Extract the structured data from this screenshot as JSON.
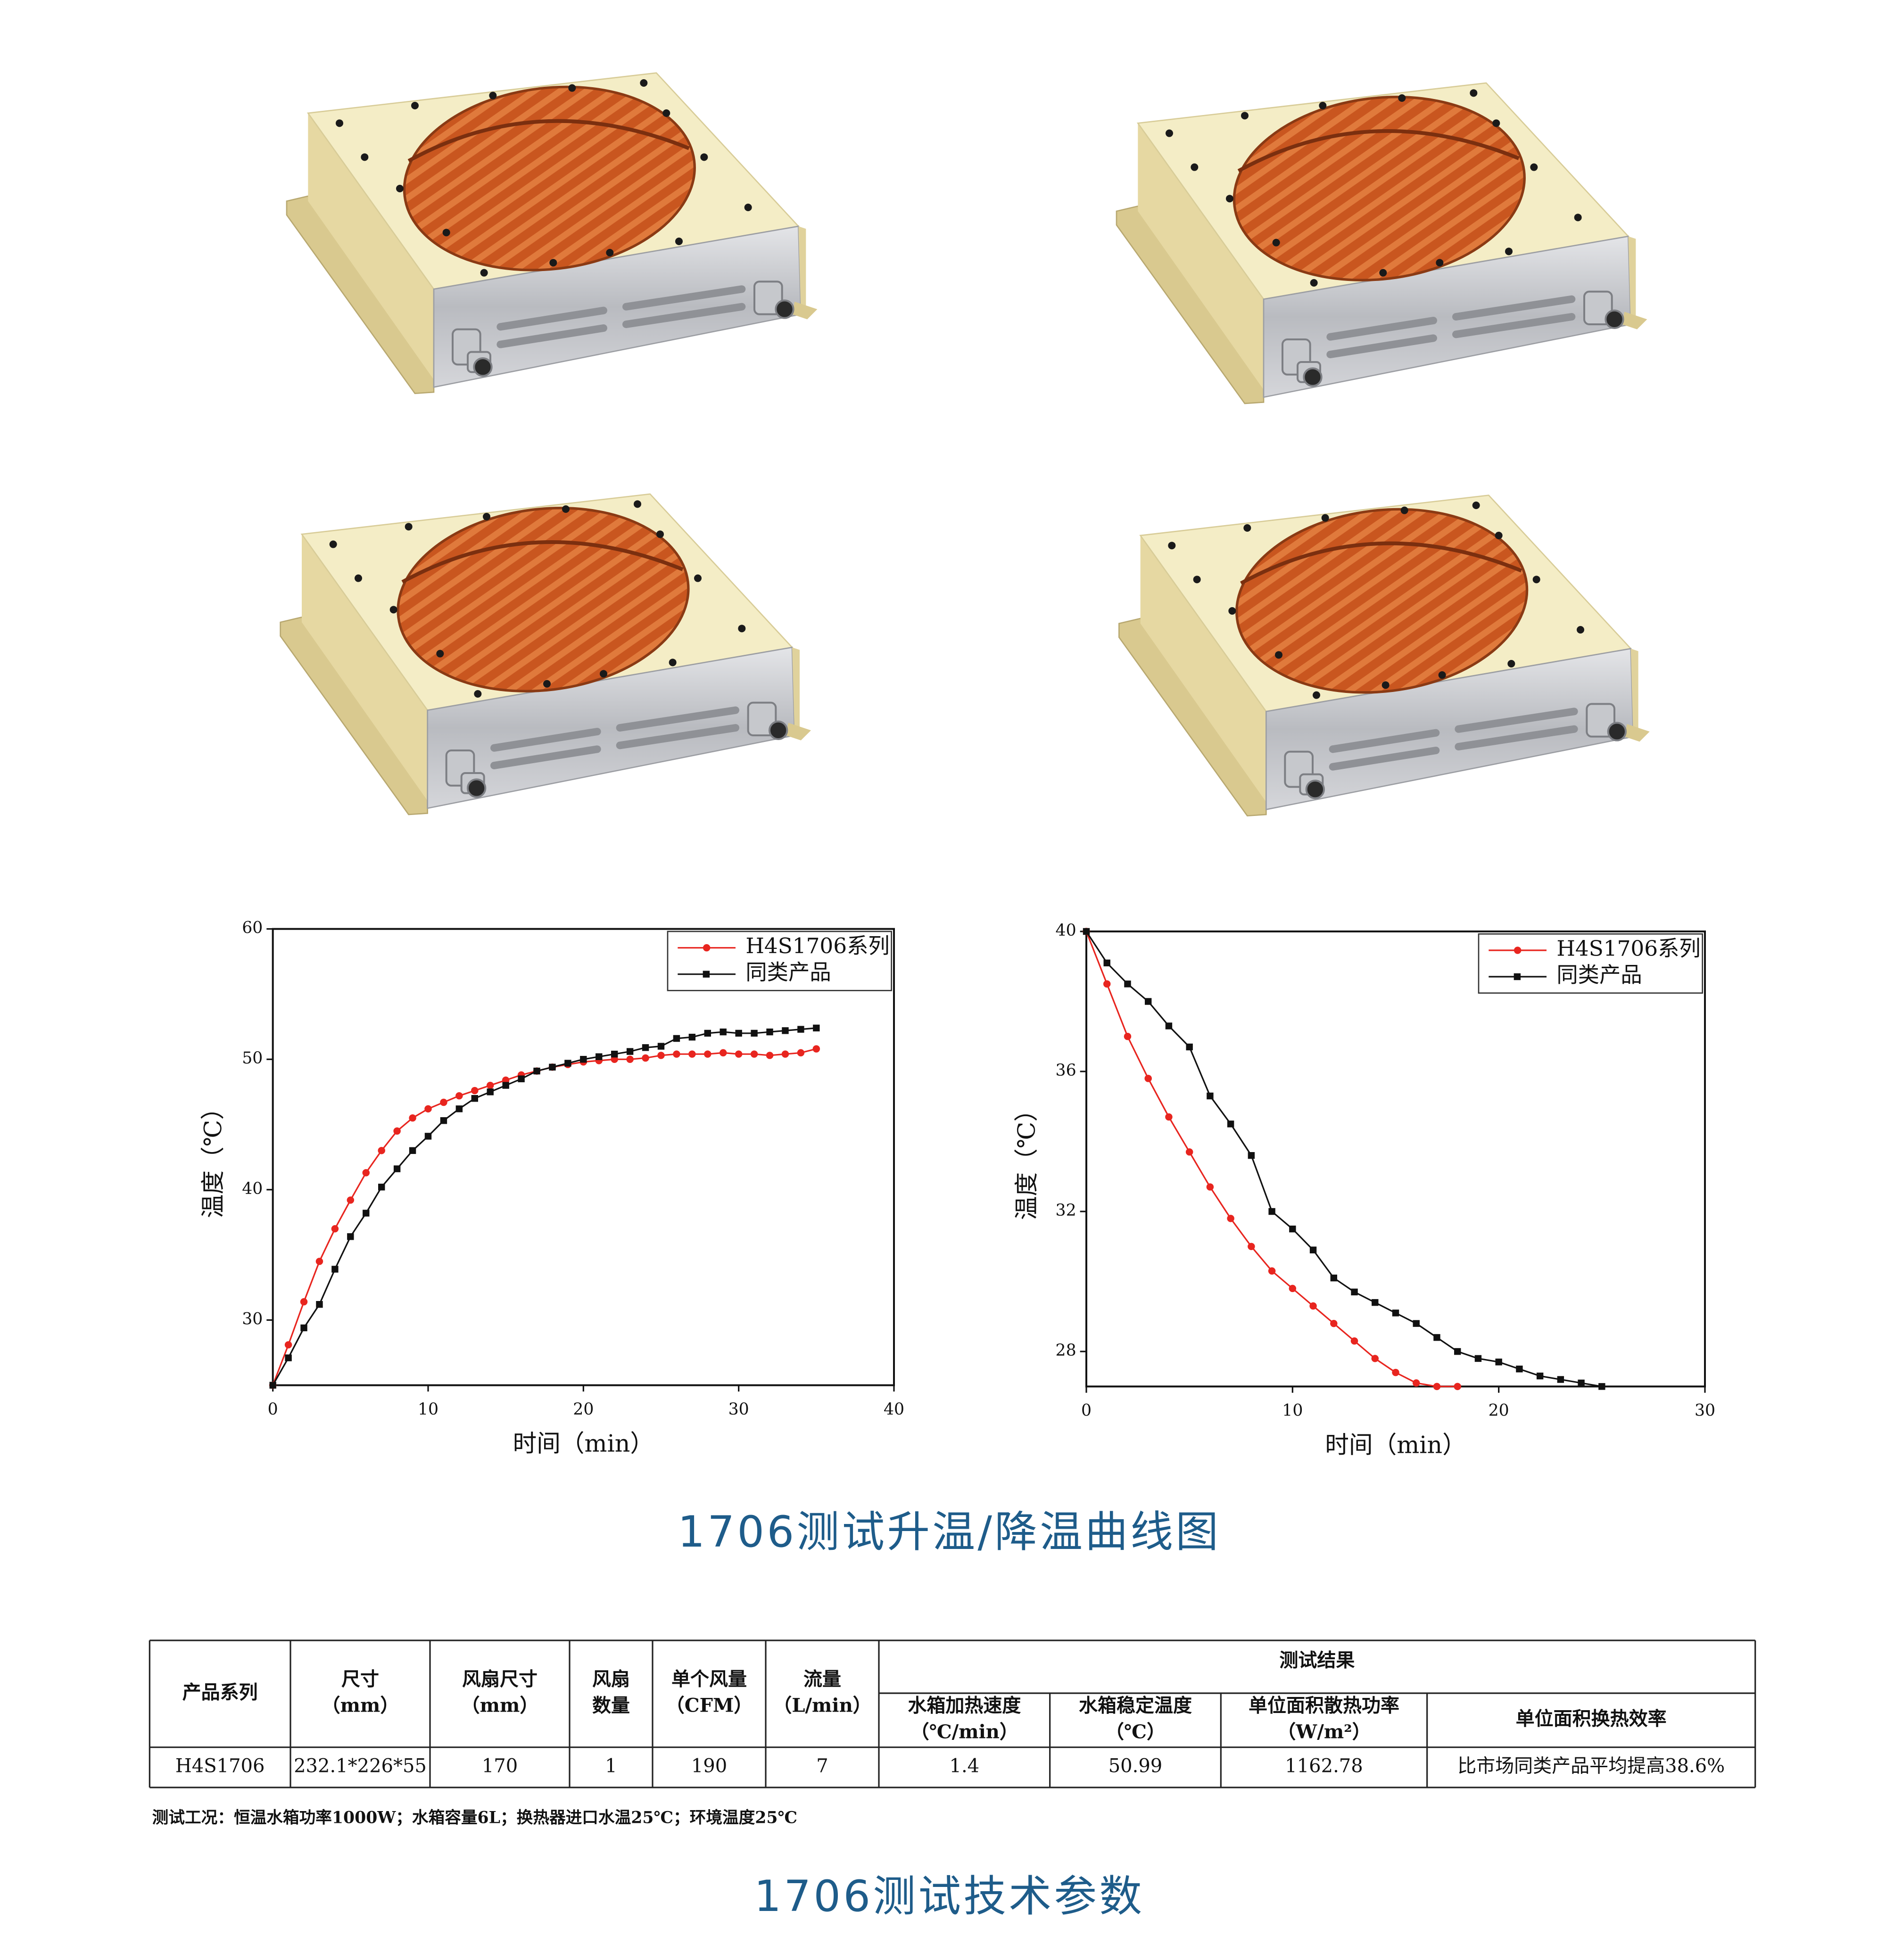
{
  "chart_data": [
    {
      "type": "line",
      "x_label": "时间（min）",
      "y_label": "温度（℃）",
      "xlim": [
        0,
        40
      ],
      "xticks": [
        0,
        10,
        20,
        30,
        40
      ],
      "ylim": [
        25,
        60
      ],
      "yticks": [
        30,
        40,
        50,
        60
      ],
      "legend": "top-right",
      "grid": false,
      "x": [
        0,
        1,
        2,
        3,
        4,
        5,
        6,
        7,
        8,
        9,
        10,
        11,
        12,
        13,
        14,
        15,
        16,
        17,
        18,
        19,
        20,
        21,
        22,
        23,
        24,
        25,
        26,
        27,
        28,
        29,
        30,
        31,
        32,
        33,
        34,
        35
      ],
      "series": [
        {
          "name": "H4S1706系列",
          "color": "#e8251f",
          "marker": "circle",
          "values": [
            25,
            28.1,
            31.4,
            34.5,
            37.0,
            39.2,
            41.3,
            43.0,
            44.5,
            45.5,
            46.2,
            46.7,
            47.2,
            47.6,
            48.0,
            48.4,
            48.8,
            49.1,
            49.4,
            49.6,
            49.8,
            49.9,
            50.0,
            50.0,
            50.1,
            50.3,
            50.4,
            50.4,
            50.4,
            50.5,
            50.4,
            50.4,
            50.3,
            50.4,
            50.5,
            50.8
          ]
        },
        {
          "name": "同类产品",
          "color": "#111111",
          "marker": "square",
          "values": [
            25,
            27.1,
            29.4,
            31.2,
            33.9,
            36.4,
            38.2,
            40.2,
            41.6,
            43.0,
            44.1,
            45.3,
            46.2,
            47.0,
            47.5,
            48.0,
            48.5,
            49.1,
            49.4,
            49.7,
            50.0,
            50.2,
            50.4,
            50.6,
            50.9,
            51.0,
            51.6,
            51.7,
            52.0,
            52.1,
            52.0,
            52.0,
            52.1,
            52.2,
            52.3,
            52.4
          ]
        }
      ]
    },
    {
      "type": "line",
      "x_label": "时间（min）",
      "y_label": "温度（℃）",
      "xlim": [
        0,
        30
      ],
      "xticks": [
        0,
        10,
        20,
        30
      ],
      "ylim": [
        27,
        40
      ],
      "yticks": [
        28,
        32,
        36,
        40
      ],
      "legend": "top-right",
      "grid": false,
      "x": [
        0,
        1,
        2,
        3,
        4,
        5,
        6,
        7,
        8,
        9,
        10,
        11,
        12,
        13,
        14,
        15,
        16,
        17,
        18,
        19,
        20,
        21,
        22,
        23,
        24,
        25
      ],
      "series": [
        {
          "name": "H4S1706系列",
          "color": "#e8251f",
          "marker": "circle",
          "values": [
            40,
            38.5,
            37.0,
            35.8,
            34.7,
            33.7,
            32.7,
            31.8,
            31.0,
            30.3,
            29.8,
            29.3,
            28.8,
            28.3,
            27.8,
            27.4,
            27.1,
            27.0,
            27.0,
            null,
            null,
            null,
            null,
            null,
            null,
            null
          ]
        },
        {
          "name": "同类产品",
          "color": "#111111",
          "marker": "square",
          "values": [
            40,
            39.1,
            38.5,
            38.0,
            37.3,
            36.7,
            35.3,
            34.5,
            33.6,
            32.0,
            31.5,
            30.9,
            30.1,
            29.7,
            29.4,
            29.1,
            28.8,
            28.4,
            28.0,
            27.8,
            27.7,
            27.5,
            27.3,
            27.2,
            27.1,
            27.0
          ]
        }
      ]
    }
  ],
  "captions": [
    "1706测试升温/降温曲线图",
    "1706测试技术参数"
  ],
  "table": {
    "header": [
      [
        "产品系列"
      ],
      [
        "尺寸",
        "（mm）"
      ],
      [
        "风扇尺寸",
        "（mm）"
      ],
      [
        "风扇",
        "数量"
      ],
      [
        "单个风量",
        "（CFM）"
      ],
      [
        "流量",
        "（L/min）"
      ]
    ],
    "group_header": "测试结果",
    "subheader": [
      [
        "水箱加热速度",
        "（℃/min）"
      ],
      [
        "水箱稳定温度",
        "（℃）"
      ],
      [
        "单位面积散热功率",
        "（W/m²）"
      ],
      [
        "单位面积换热效率"
      ]
    ],
    "rows": [
      [
        "H4S1706",
        "232.1*226*55",
        "170",
        "1",
        "190",
        "7",
        "1.4",
        "50.99",
        "1162.78",
        "比市场同类产品平均提高38.6%"
      ]
    ]
  },
  "note": "测试工况：恒温水箱功率1000W；水箱容量6L；换热器进口水温25℃；环境温度25℃"
}
